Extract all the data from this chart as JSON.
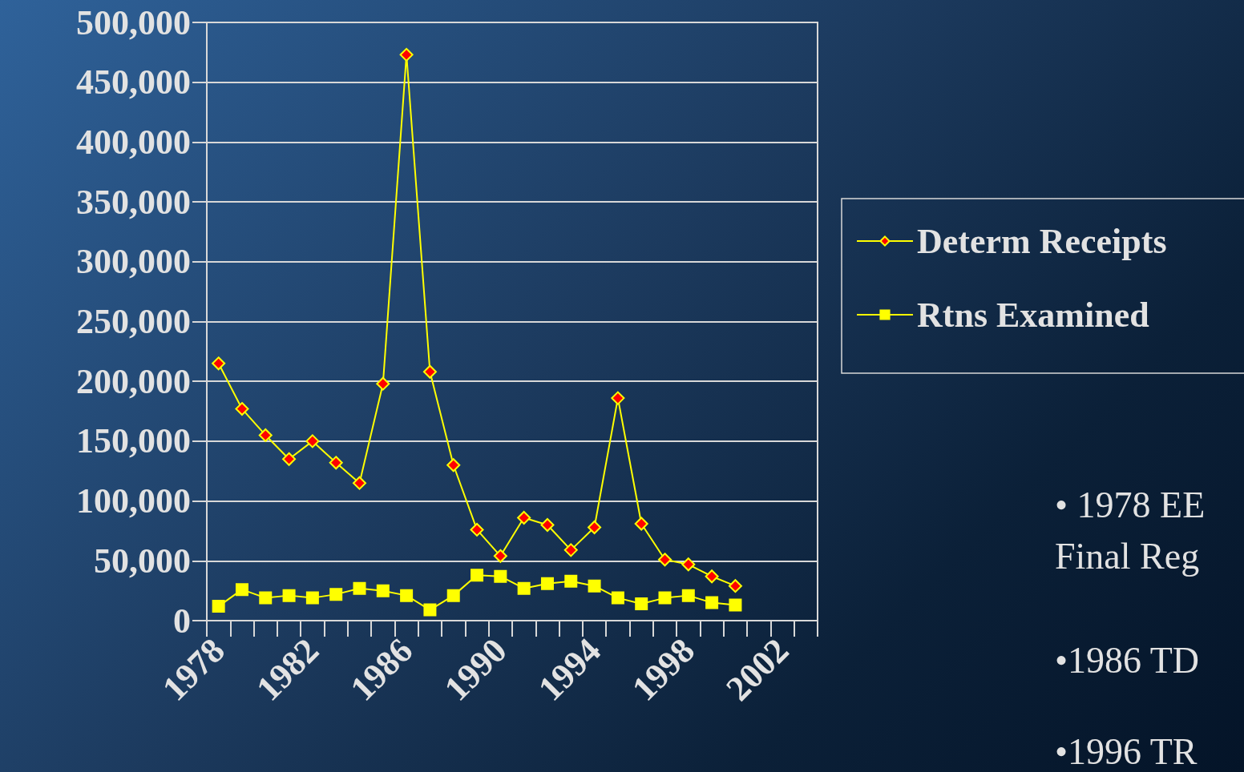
{
  "chart_data": {
    "type": "line",
    "categories": [
      "1978",
      null,
      null,
      null,
      "1982",
      null,
      null,
      null,
      "1986",
      null,
      null,
      null,
      "1990",
      null,
      null,
      null,
      "1994",
      null,
      null,
      null,
      "1998",
      null,
      null,
      null,
      "2002",
      null
    ],
    "series": [
      {
        "name": "Determ Receipts",
        "color": "#ffff00",
        "marker": "diamond",
        "values": [
          215000,
          177000,
          155000,
          135000,
          150000,
          132000,
          115000,
          198000,
          473000,
          208000,
          130000,
          76000,
          54000,
          86000,
          80000,
          59000,
          78000,
          186000,
          81000,
          51000,
          47000,
          37000,
          29000,
          null,
          null,
          null
        ]
      },
      {
        "name": "Rtns Examined",
        "color": "#ffff00",
        "marker": "square",
        "values": [
          12000,
          26000,
          19000,
          21000,
          19000,
          22000,
          27000,
          25000,
          21000,
          9000,
          21000,
          38000,
          37000,
          27000,
          31000,
          33000,
          29000,
          19000,
          14000,
          19000,
          21000,
          15000,
          13000,
          null,
          null,
          null
        ]
      }
    ],
    "ylim": [
      0,
      500000
    ],
    "yticks": [
      0,
      {
        "value": 50000,
        "label": "50,000"
      },
      {
        "value": 100000,
        "label": "100,000"
      },
      {
        "value": 150000,
        "label": "150,000"
      },
      {
        "value": 200000,
        "label": "200,000"
      },
      {
        "value": 250000,
        "label": "250,000"
      },
      {
        "value": 300000,
        "label": "300,000"
      },
      {
        "value": 350000,
        "label": "350,000"
      },
      {
        "value": 400000,
        "label": "400,000"
      },
      {
        "value": 450000,
        "label": "450,000"
      },
      {
        "value": 500000,
        "label": "500,000"
      }
    ],
    "grid": "y",
    "legend": "right",
    "line_style": "solid",
    "annotations": [
      "• 1978 EE\nFinal Reg",
      "•1986 TD",
      "•1996 TR"
    ]
  }
}
